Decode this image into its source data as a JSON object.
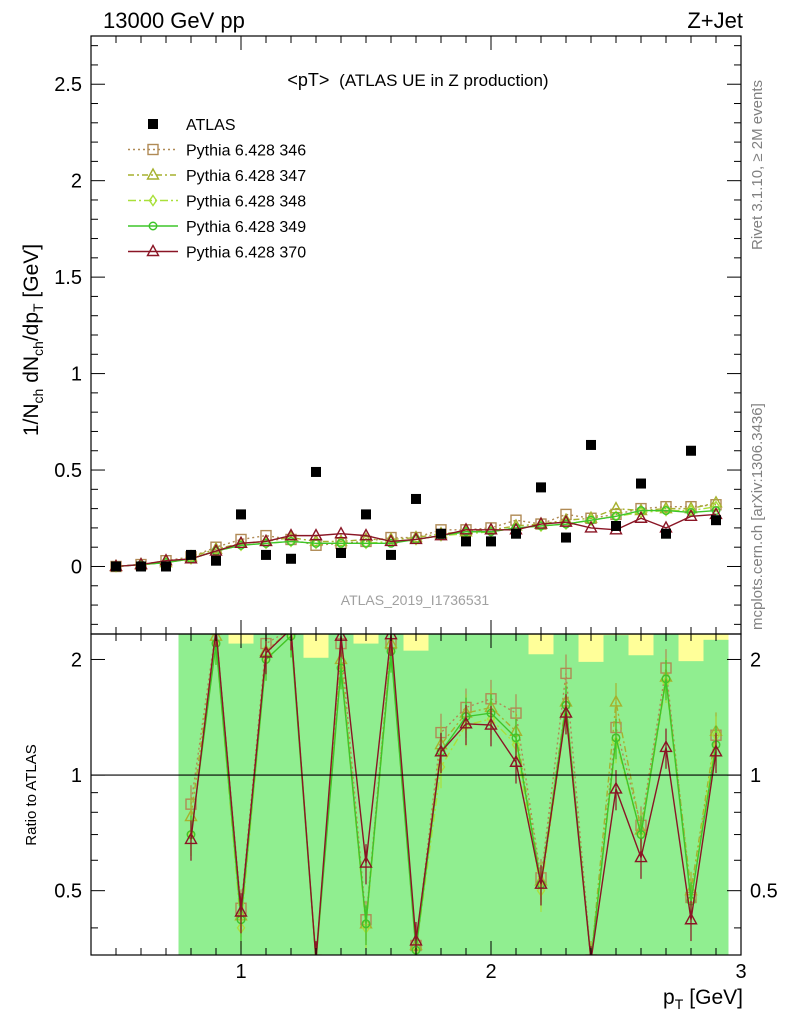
{
  "header": {
    "left": "13000 GeV pp",
    "right": "Z+Jet"
  },
  "side_labels": {
    "rivet": "Rivet 3.1.10, ≥ 2M events",
    "mcplots": "mcplots.cern.ch [arXiv:1306.3436]"
  },
  "chart_data": {
    "type": "scatter",
    "title": "<pT>",
    "title_suffix": "(ATLAS UE in Z production)",
    "analysis_label": "ATLAS_2019_I1736531",
    "xlabel": "p",
    "xlabel_sub": "T",
    "xlabel_unit": "[GeV]",
    "ylabel": "1/N",
    "ylabel_sub1": "ch",
    "ylabel_mid": " dN",
    "ylabel_sub2": "ch",
    "ylabel_mid2": "/dp",
    "ylabel_sub3": "T",
    "ylabel_unit": " [GeV]",
    "ratio_ylabel": "Ratio to ATLAS",
    "xlim": [
      0.4,
      3.0
    ],
    "ylim": [
      -0.35,
      2.75
    ],
    "ratio_ylim": [
      0.34,
      2.33
    ],
    "x_ticks": [
      1,
      2,
      3
    ],
    "x_tick_labels": [
      "1",
      "2",
      "3"
    ],
    "y_ticks": [
      0,
      0.5,
      1,
      1.5,
      2,
      2.5
    ],
    "y_tick_labels": [
      "0",
      "0.5",
      "1",
      "1.5",
      "2",
      "2.5"
    ],
    "ratio_ticks": [
      0.5,
      1,
      2
    ],
    "ratio_tick_labels": [
      "0.5",
      "1",
      "2"
    ],
    "legend_placement": "top-left",
    "x": [
      0.5,
      0.6,
      0.7,
      0.8,
      0.9,
      1.0,
      1.1,
      1.2,
      1.3,
      1.4,
      1.5,
      1.6,
      1.7,
      1.8,
      1.9,
      2.0,
      2.1,
      2.2,
      2.3,
      2.4,
      2.5,
      2.6,
      2.7,
      2.8,
      2.9
    ],
    "data": {
      "name": "ATLAS",
      "color": "#000000",
      "values": [
        0.0,
        0.0,
        0.0,
        0.06,
        0.03,
        0.27,
        0.06,
        0.04,
        0.49,
        0.07,
        0.27,
        0.06,
        0.35,
        0.17,
        0.13,
        0.13,
        0.17,
        0.41,
        0.15,
        0.63,
        0.21,
        0.43,
        0.17,
        0.6,
        0.24
      ]
    },
    "series": [
      {
        "name": "Pythia 6.428 346",
        "color": "#b08a55",
        "marker": "square",
        "dash": "2,3",
        "values": [
          0.0,
          0.01,
          0.03,
          0.05,
          0.1,
          0.14,
          0.16,
          0.14,
          0.11,
          0.12,
          0.13,
          0.15,
          0.15,
          0.19,
          0.19,
          0.2,
          0.24,
          0.22,
          0.27,
          0.25,
          0.27,
          0.3,
          0.31,
          0.31,
          0.32
        ],
        "ratio": [
          null,
          null,
          null,
          0.84,
          2.4,
          0.45,
          2.2,
          2.4,
          0.32,
          2.2,
          0.42,
          2.2,
          0.36,
          1.29,
          1.5,
          1.58,
          1.45,
          0.54,
          1.84,
          0.33,
          1.33,
          0.74,
          1.9,
          0.48,
          1.27
        ]
      },
      {
        "name": "Pythia 6.428 347",
        "color": "#a6b12e",
        "marker": "triangle",
        "dash": "6,3,2,3",
        "values": [
          0.0,
          0.01,
          0.02,
          0.05,
          0.09,
          0.12,
          0.13,
          0.15,
          0.13,
          0.13,
          0.14,
          0.14,
          0.15,
          0.17,
          0.18,
          0.19,
          0.21,
          0.22,
          0.24,
          0.25,
          0.3,
          0.29,
          0.3,
          0.3,
          0.33
        ],
        "ratio": [
          null,
          null,
          null,
          0.78,
          2.3,
          0.43,
          2.1,
          2.4,
          0.3,
          2.0,
          0.41,
          2.2,
          0.36,
          1.2,
          1.45,
          1.5,
          1.3,
          0.53,
          1.55,
          0.33,
          1.55,
          0.72,
          1.8,
          0.5,
          1.3
        ]
      },
      {
        "name": "Pythia 6.428 348",
        "color": "#a9e03a",
        "marker": "diamond",
        "dash": "8,3,2,3",
        "values": [
          0.0,
          0.01,
          0.02,
          0.04,
          0.08,
          0.11,
          0.12,
          0.13,
          0.12,
          0.12,
          0.12,
          0.13,
          0.14,
          0.16,
          0.17,
          0.18,
          0.2,
          0.21,
          0.22,
          0.24,
          0.26,
          0.28,
          0.29,
          0.29,
          0.31
        ],
        "ratio": [
          null,
          null,
          null,
          0.7,
          2.2,
          0.4,
          2.0,
          2.3,
          0.28,
          1.9,
          0.4,
          2.1,
          0.35,
          1.05,
          1.35,
          1.4,
          1.2,
          0.5,
          1.45,
          0.32,
          1.22,
          0.7,
          1.75,
          0.47,
          1.27
        ]
      },
      {
        "name": "Pythia 6.428 349",
        "color": "#3ec52a",
        "marker": "circle",
        "dash": "",
        "values": [
          0.0,
          0.01,
          0.02,
          0.04,
          0.08,
          0.11,
          0.12,
          0.13,
          0.12,
          0.12,
          0.12,
          0.12,
          0.14,
          0.16,
          0.18,
          0.18,
          0.2,
          0.21,
          0.22,
          0.24,
          0.26,
          0.29,
          0.29,
          0.28,
          0.29
        ],
        "ratio": [
          null,
          null,
          null,
          0.7,
          2.2,
          0.42,
          2.0,
          2.3,
          0.28,
          1.9,
          0.41,
          2.1,
          0.35,
          1.15,
          1.42,
          1.45,
          1.25,
          0.52,
          1.52,
          0.32,
          1.25,
          0.7,
          1.78,
          0.47,
          1.2
        ]
      },
      {
        "name": "Pythia 6.428 370",
        "color": "#8a1525",
        "marker": "triangle",
        "dash": "",
        "values": [
          0.0,
          0.01,
          0.03,
          0.04,
          0.08,
          0.12,
          0.13,
          0.16,
          0.16,
          0.17,
          0.16,
          0.13,
          0.14,
          0.16,
          0.19,
          0.19,
          0.19,
          0.22,
          0.23,
          0.2,
          0.19,
          0.25,
          0.2,
          0.26,
          0.27
        ],
        "ratio": [
          null,
          null,
          null,
          0.68,
          2.45,
          0.44,
          2.08,
          2.4,
          0.33,
          2.3,
          0.59,
          2.32,
          0.37,
          1.15,
          1.36,
          1.35,
          1.08,
          0.52,
          1.45,
          0.32,
          0.92,
          0.61,
          1.18,
          0.42,
          1.15
        ]
      }
    ],
    "ratio_band": {
      "x_start": 0.75,
      "x_end": 2.95,
      "inner_color": "#90ee90",
      "outer_color": "#ffff99"
    }
  }
}
